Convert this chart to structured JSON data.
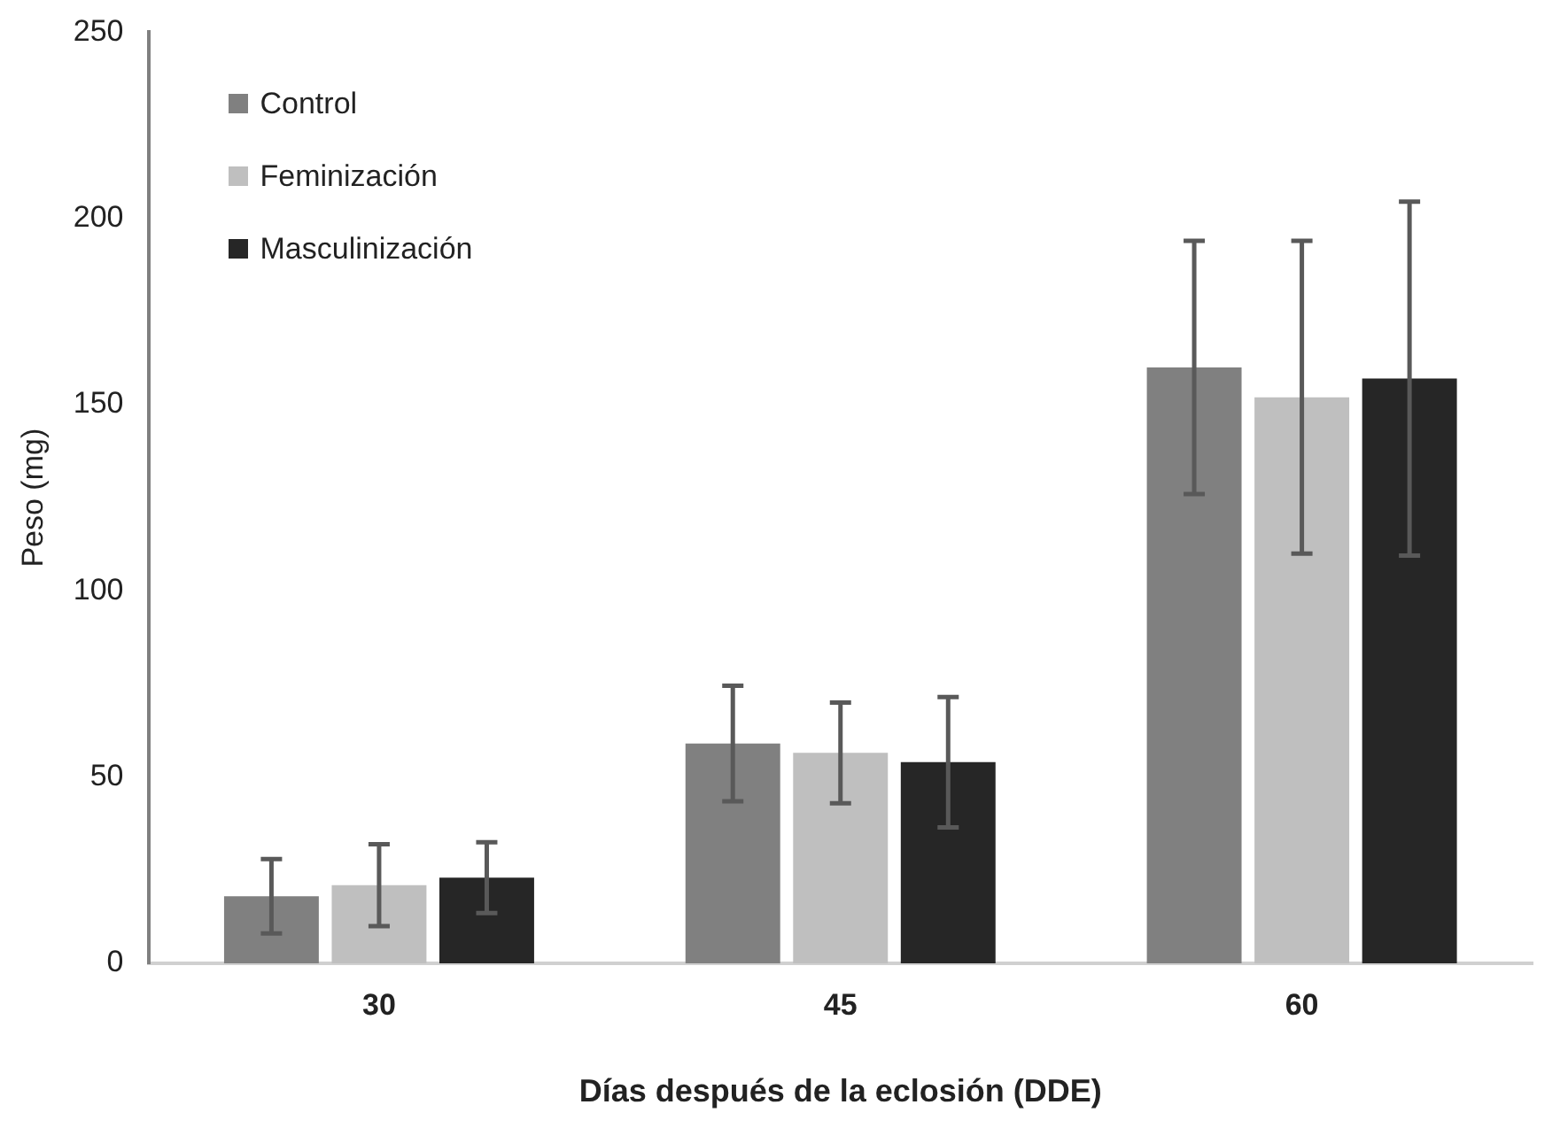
{
  "chart_data": {
    "type": "bar",
    "xlabel": "Días después de la eclosión (DDE)",
    "ylabel": "Peso (mg)",
    "categories": [
      "30",
      "45",
      "60"
    ],
    "series": [
      {
        "name": "Control",
        "color": "#808080",
        "values": [
          18,
          59,
          160
        ],
        "errors": [
          10,
          15.5,
          34
        ]
      },
      {
        "name": "Feminización",
        "color": "#bfbfbf",
        "values": [
          21,
          56.5,
          152
        ],
        "errors": [
          11,
          13.5,
          42
        ]
      },
      {
        "name": "Masculinización",
        "color": "#262626",
        "values": [
          23,
          54,
          157
        ],
        "errors": [
          9.5,
          17.5,
          47.5
        ]
      }
    ],
    "ylim": [
      0,
      250
    ],
    "yticks": [
      0,
      50,
      100,
      150,
      200,
      250
    ],
    "grid": false,
    "legend": "top left"
  }
}
